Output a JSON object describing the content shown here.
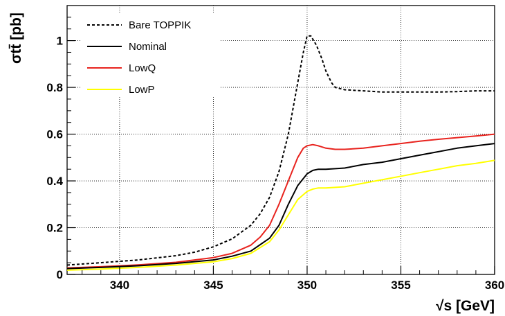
{
  "chart_data": {
    "type": "line",
    "xlabel": "√s [GeV]",
    "ylabel": "σtt̄ [pb]",
    "xlim": [
      337.2,
      360
    ],
    "ylim": [
      0,
      1.15
    ],
    "grid": true,
    "legend_position": "top-left",
    "x_ticks": [
      340,
      345,
      350,
      355,
      360
    ],
    "x_tick_labels": [
      "340",
      "345",
      "350",
      "355",
      "360"
    ],
    "y_ticks": [
      0,
      0.2,
      0.4,
      0.6,
      0.8,
      1
    ],
    "y_tick_labels": [
      "0",
      "0.2",
      "0.4",
      "0.6",
      "0.8",
      "1"
    ],
    "series": [
      {
        "name": "Bare TOPPIK",
        "color": "#000000",
        "dashed": true,
        "x": [
          337.2,
          339,
          341,
          343,
          344,
          345,
          346,
          347,
          347.5,
          348,
          348.5,
          349,
          349.5,
          349.8,
          350,
          350.2,
          350.5,
          350.8,
          351,
          351.3,
          351.5,
          352,
          353,
          354,
          355,
          356,
          357,
          358,
          359,
          360
        ],
        "y": [
          0.04,
          0.05,
          0.062,
          0.08,
          0.095,
          0.118,
          0.152,
          0.21,
          0.26,
          0.33,
          0.44,
          0.6,
          0.82,
          0.95,
          1.02,
          1.02,
          0.98,
          0.92,
          0.87,
          0.82,
          0.8,
          0.79,
          0.785,
          0.78,
          0.78,
          0.78,
          0.78,
          0.782,
          0.785,
          0.785
        ]
      },
      {
        "name": "Nominal",
        "color": "#000000",
        "dashed": false,
        "x": [
          337.2,
          339,
          341,
          343,
          345,
          346,
          347,
          348,
          348.5,
          349,
          349.5,
          350,
          350.3,
          350.6,
          351,
          352,
          353,
          354,
          355,
          356,
          357,
          358,
          359,
          360
        ],
        "y": [
          0.025,
          0.03,
          0.037,
          0.047,
          0.062,
          0.078,
          0.1,
          0.155,
          0.21,
          0.3,
          0.38,
          0.43,
          0.445,
          0.45,
          0.45,
          0.455,
          0.47,
          0.48,
          0.495,
          0.51,
          0.525,
          0.54,
          0.55,
          0.56
        ]
      },
      {
        "name": "LowQ",
        "color": "#e8231e",
        "dashed": false,
        "x": [
          337.2,
          339,
          341,
          343,
          345,
          346,
          347,
          347.5,
          348,
          348.5,
          349,
          349.5,
          349.8,
          350,
          350.3,
          350.6,
          351,
          351.5,
          352,
          353,
          354,
          355,
          356,
          357,
          358,
          359,
          360
        ],
        "y": [
          0.028,
          0.033,
          0.041,
          0.052,
          0.072,
          0.09,
          0.125,
          0.16,
          0.21,
          0.3,
          0.4,
          0.5,
          0.54,
          0.55,
          0.555,
          0.55,
          0.54,
          0.535,
          0.535,
          0.54,
          0.55,
          0.56,
          0.57,
          0.578,
          0.585,
          0.592,
          0.6
        ]
      },
      {
        "name": "LowP",
        "color": "#ffff00",
        "dashed": false,
        "x": [
          337.2,
          339,
          341,
          343,
          345,
          346,
          347,
          348,
          348.5,
          349,
          349.5,
          350,
          350.3,
          350.6,
          351,
          352,
          353,
          354,
          355,
          356,
          357,
          358,
          359,
          360
        ],
        "y": [
          0.018,
          0.023,
          0.03,
          0.04,
          0.054,
          0.068,
          0.09,
          0.14,
          0.19,
          0.255,
          0.32,
          0.355,
          0.365,
          0.37,
          0.37,
          0.375,
          0.39,
          0.405,
          0.42,
          0.435,
          0.45,
          0.465,
          0.475,
          0.488
        ]
      }
    ]
  }
}
